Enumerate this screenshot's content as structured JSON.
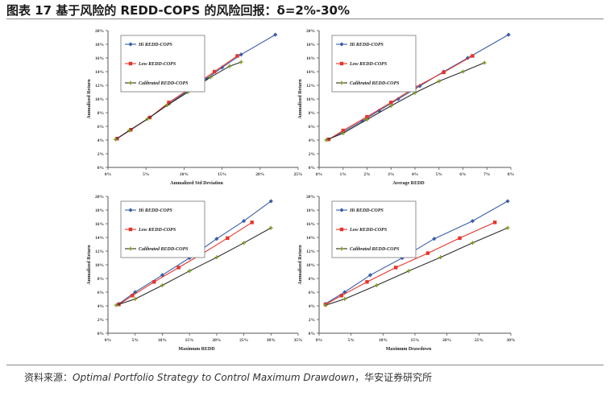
{
  "header": {
    "title": "图表 17 基于风险的 REDD-COPS 的风险回报：δ=2%-30%"
  },
  "footer": {
    "source_label": "资料来源：",
    "source_title": "Optimal Portfolio Strategy to Control Maximum Drawdown",
    "source_suffix": "，华安证券研究所"
  },
  "colors": {
    "hi": "#3a5ea8",
    "low": "#e8332a",
    "calibrated": "#2b2b2b",
    "calibrated_marker": "#7a9a1e"
  },
  "chart_data": [
    {
      "type": "line",
      "xlabel": "Annualized Std Deviation",
      "ylabel": "Annualized Return",
      "xlim": [
        0,
        25
      ],
      "ylim": [
        0,
        20
      ],
      "xticks": [
        "0%",
        "5%",
        "10%",
        "15%",
        "20%",
        "25%"
      ],
      "yticks": [
        "0%",
        "2%",
        "4%",
        "6%",
        "8%",
        "10%",
        "12%",
        "14%",
        "16%",
        "18%",
        "20%"
      ],
      "grid": false,
      "legend": "top-left",
      "series": [
        {
          "name": "Hi REDD-COPS",
          "x": [
            1.2,
            3,
            5.5,
            8,
            10.5,
            13,
            15,
            17.5,
            22
          ],
          "y": [
            4.2,
            5.5,
            7.3,
            9.3,
            11.2,
            13,
            14.6,
            16.5,
            19.4
          ]
        },
        {
          "name": "Low REDD-COPS",
          "x": [
            1.2,
            3,
            5.5,
            8,
            11,
            14,
            17
          ],
          "y": [
            4.2,
            5.5,
            7.3,
            9.5,
            11.7,
            14,
            16.3
          ]
        },
        {
          "name": "Calibrated REDD-COPS",
          "x": [
            1,
            2.8,
            5.2,
            7.8,
            10.5,
            13.5,
            16,
            17.5
          ],
          "y": [
            4.1,
            5.4,
            7.1,
            9.1,
            11,
            13.2,
            14.8,
            15.4
          ]
        }
      ]
    },
    {
      "type": "line",
      "xlabel": "Average REDD",
      "ylabel": "Annualized Return",
      "xlim": [
        0,
        8
      ],
      "ylim": [
        0,
        20
      ],
      "xticks": [
        "0%",
        "1%",
        "2%",
        "3%",
        "4%",
        "5%",
        "6%",
        "7%",
        "8%"
      ],
      "yticks": [
        "0%",
        "2%",
        "4%",
        "6%",
        "8%",
        "10%",
        "12%",
        "14%",
        "16%",
        "18%",
        "20%"
      ],
      "grid": false,
      "legend": "top-left",
      "series": [
        {
          "name": "Hi REDD-COPS",
          "x": [
            0.4,
            1,
            1.8,
            2.5,
            3.3,
            4.2,
            5.2,
            6.2,
            7.9
          ],
          "y": [
            4.1,
            5.2,
            6.8,
            8.3,
            10,
            11.9,
            14,
            16,
            19.4
          ]
        },
        {
          "name": "Low REDD-COPS",
          "x": [
            0.4,
            1,
            2,
            3,
            4,
            5.2,
            6.4
          ],
          "y": [
            4.1,
            5.4,
            7.4,
            9.5,
            11.7,
            13.9,
            16.3
          ]
        },
        {
          "name": "Calibrated REDD-COPS",
          "x": [
            0.3,
            1,
            2,
            3,
            4,
            5,
            6,
            6.9
          ],
          "y": [
            4,
            5,
            7,
            9,
            10.9,
            12.6,
            14,
            15.3
          ]
        }
      ]
    },
    {
      "type": "line",
      "xlabel": "Maximum REDD",
      "ylabel": "Annualized Return",
      "xlim": [
        0,
        35
      ],
      "ylim": [
        0,
        20
      ],
      "xticks": [
        "0%",
        "5%",
        "10%",
        "15%",
        "20%",
        "25%",
        "30%",
        "35%"
      ],
      "yticks": [
        "0%",
        "2%",
        "4%",
        "6%",
        "8%",
        "10%",
        "12%",
        "14%",
        "16%",
        "18%",
        "20%"
      ],
      "grid": false,
      "legend": "top-left",
      "series": [
        {
          "name": "Hi REDD-COPS",
          "x": [
            2,
            5,
            10,
            15,
            20,
            25,
            30
          ],
          "y": [
            4.3,
            6,
            8.5,
            11,
            13.8,
            16.4,
            19.3
          ]
        },
        {
          "name": "Low REDD-COPS",
          "x": [
            2,
            4.5,
            8.5,
            13,
            17.5,
            22,
            26.5
          ],
          "y": [
            4.2,
            5.5,
            7.5,
            9.6,
            11.7,
            13.9,
            16.2
          ]
        },
        {
          "name": "Calibrated REDD-COPS",
          "x": [
            1.5,
            5,
            10,
            15,
            20,
            25,
            30
          ],
          "y": [
            4.1,
            5,
            7,
            9.1,
            11.1,
            13.2,
            15.4
          ]
        }
      ]
    },
    {
      "type": "line",
      "xlabel": "Maximum Drawdown",
      "ylabel": "Annualized Return",
      "xlim": [
        0,
        30
      ],
      "ylim": [
        0,
        20
      ],
      "xticks": [
        "0%",
        "5%",
        "10%",
        "15%",
        "20%",
        "25%",
        "30%"
      ],
      "yticks": [
        "0%",
        "2%",
        "4%",
        "6%",
        "8%",
        "10%",
        "12%",
        "14%",
        "16%",
        "18%",
        "20%"
      ],
      "grid": false,
      "legend": "top-left",
      "series": [
        {
          "name": "Hi REDD-COPS",
          "x": [
            1,
            4,
            8,
            13,
            18,
            24,
            29.5
          ],
          "y": [
            4.3,
            6,
            8.5,
            11,
            13.8,
            16.4,
            19.3
          ]
        },
        {
          "name": "Low REDD-COPS",
          "x": [
            1,
            3.5,
            7.5,
            12,
            17,
            22,
            27.5
          ],
          "y": [
            4.2,
            5.5,
            7.5,
            9.6,
            11.7,
            13.9,
            16.2
          ]
        },
        {
          "name": "Calibrated REDD-COPS",
          "x": [
            1,
            4,
            9,
            14,
            19,
            24,
            29.5
          ],
          "y": [
            4.1,
            5,
            7,
            9.1,
            11.1,
            13.2,
            15.4
          ]
        }
      ]
    }
  ]
}
